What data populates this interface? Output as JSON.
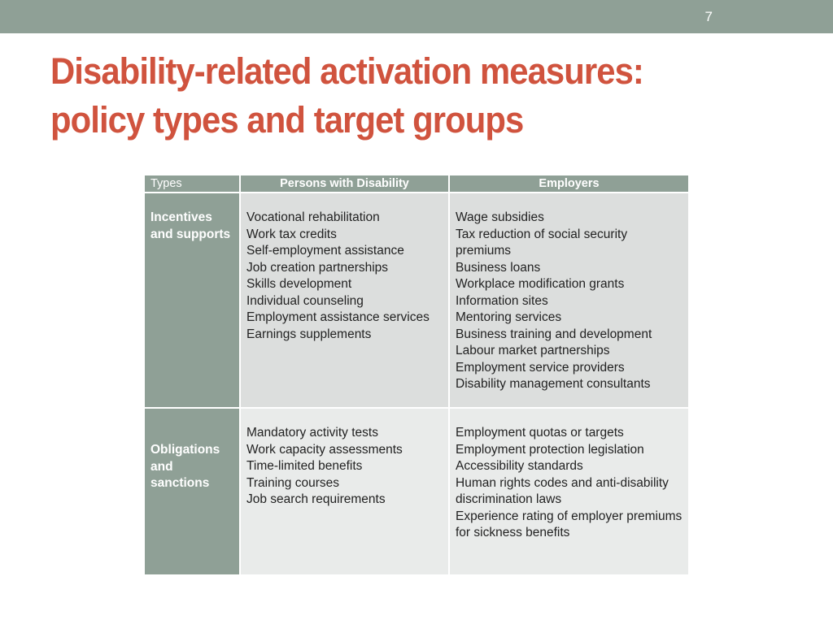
{
  "slide": {
    "number": "7",
    "title_line1": "Disability-related activation measures:",
    "title_line2": "policy types and target groups"
  },
  "colors": {
    "accent_bar": "#8fa096",
    "title": "#d0533e",
    "cell_light": "#dcdedd",
    "cell_lighter": "#e9ebea"
  },
  "table": {
    "headers": [
      "Types",
      "Persons with Disability",
      "Employers"
    ],
    "rows": [
      {
        "type": "Incentives and supports",
        "persons": [
          "Vocational rehabilitation",
          "Work tax credits",
          "Self-employment assistance",
          "Job creation partnerships",
          "Skills development",
          "Individual counseling",
          "Employment assistance services",
          "Earnings supplements"
        ],
        "employers": [
          "Wage subsidies",
          "Tax reduction of social security premiums",
          "Business loans",
          "Workplace modification grants",
          "Information sites",
          "Mentoring services",
          "Business training and development",
          "Labour market partnerships",
          "Employment service providers",
          "Disability management consultants"
        ]
      },
      {
        "type": "Obligations and sanctions",
        "persons": [
          "Mandatory activity tests",
          "Work capacity assessments",
          "Time-limited benefits",
          "Training courses",
          "Job search requirements"
        ],
        "employers": [
          "Employment quotas or targets",
          "Employment protection legislation",
          "Accessibility standards",
          "Human rights codes and anti-disability discrimination laws",
          "Experience rating of employer premiums for sickness benefits"
        ]
      }
    ]
  }
}
